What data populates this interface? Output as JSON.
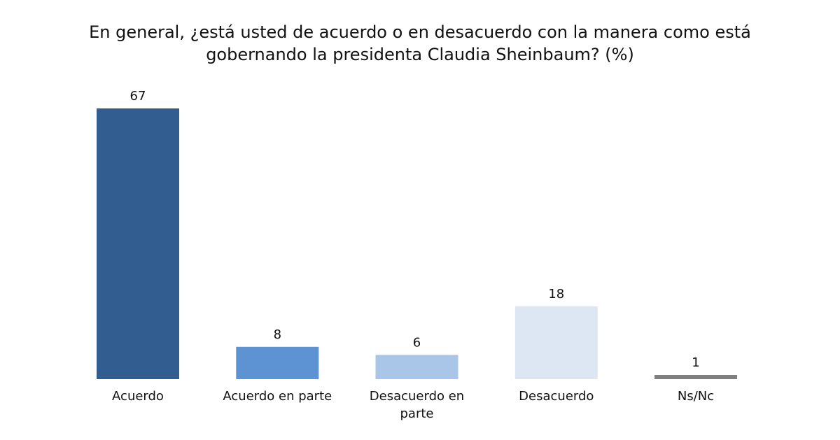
{
  "chart_data": {
    "type": "bar",
    "title": "En general, ¿está usted de acuerdo o en desacuerdo con la manera como está gobernando la presidenta Claudia Sheinbaum? (%)",
    "categories": [
      "Acuerdo",
      "Acuerdo en parte",
      "Desacuerdo en parte",
      "Desacuerdo",
      "Ns/Nc"
    ],
    "values": [
      67,
      8,
      6,
      18,
      1
    ],
    "colors": [
      "#325d91",
      "#5e93d3",
      "#a9c6e8",
      "#dde7f3",
      "#808080"
    ],
    "xlabel": "",
    "ylabel": "",
    "ylim": [
      0,
      67
    ],
    "grid": false,
    "legend": "none"
  }
}
